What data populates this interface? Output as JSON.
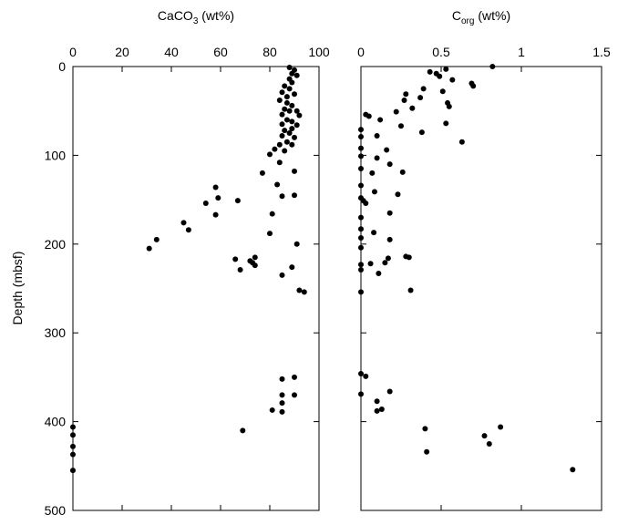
{
  "chart_data": [
    {
      "type": "scatter",
      "xlabel": [
        "CaCO",
        "3",
        " (wt%)"
      ],
      "ylabel": "Depth (mbsf)",
      "xlim": [
        0,
        100
      ],
      "xticks": [
        0,
        20,
        40,
        60,
        80,
        100
      ],
      "ylim": [
        0,
        500
      ],
      "yticks": [
        0,
        100,
        200,
        300,
        400,
        500
      ],
      "ytick_labels": true,
      "y_inverted": true,
      "color": "#000000",
      "x": [
        88,
        90,
        89,
        91,
        88,
        89,
        86,
        88,
        85,
        90,
        87,
        84,
        87,
        89,
        86,
        88,
        91,
        85,
        92,
        87,
        89,
        85,
        91,
        89,
        86,
        88,
        85,
        90,
        87,
        84,
        89,
        82,
        86,
        80,
        84,
        90,
        77,
        83,
        58,
        59,
        67,
        54,
        90,
        85,
        58,
        81,
        45,
        47,
        80,
        34,
        31,
        91,
        74,
        66,
        72,
        73,
        74,
        68,
        89,
        85,
        92,
        94,
        90,
        85,
        90,
        85,
        85,
        81,
        85,
        0,
        69,
        0,
        0,
        0,
        0
      ],
      "y": [
        1,
        4,
        8,
        10,
        14,
        18,
        22,
        25,
        29,
        31,
        34,
        38,
        41,
        44,
        48,
        50,
        50,
        54,
        55,
        60,
        62,
        65,
        66,
        70,
        72,
        75,
        78,
        80,
        85,
        88,
        88,
        93,
        95,
        99,
        108,
        118,
        120,
        133,
        136,
        148,
        151,
        154,
        145,
        146,
        167,
        166,
        176,
        184,
        188,
        195,
        205,
        200,
        215,
        217,
        219,
        221,
        224,
        229,
        226,
        235,
        252,
        254,
        350,
        352,
        370,
        370,
        379,
        387,
        389,
        406,
        410,
        415,
        428,
        437,
        455
      ]
    },
    {
      "type": "scatter",
      "xlabel": [
        "C",
        "org",
        " (wt%)"
      ],
      "xlim": [
        0,
        1.5
      ],
      "xticks": [
        0,
        0.5,
        1,
        1.5
      ],
      "ylim": [
        0,
        500
      ],
      "yticks": [
        0,
        100,
        200,
        300,
        400,
        500
      ],
      "ytick_labels": false,
      "y_inverted": true,
      "color": "#000000",
      "x": [
        0.82,
        0.43,
        0.47,
        0.49,
        0.53,
        0.57,
        0.69,
        0.7,
        0.39,
        0.51,
        0.28,
        0.37,
        0.27,
        0.54,
        0.55,
        0.32,
        0.22,
        0.03,
        0.05,
        0.12,
        0.25,
        0.53,
        0.38,
        0,
        0,
        0.1,
        0.63,
        0,
        0.16,
        0,
        0.1,
        0.18,
        0,
        0.07,
        0.26,
        0,
        0.085,
        0.23,
        0,
        0.015,
        0.03,
        0,
        0.18,
        0,
        0.08,
        0,
        0.18,
        0,
        0.28,
        0.17,
        0.15,
        0,
        0.06,
        0,
        0.11,
        0.3,
        0,
        0.31,
        0,
        0.03,
        0.18,
        0,
        0.1,
        0.13,
        0.1,
        0.4,
        0.87,
        0.77,
        0.8,
        0.41,
        1.32
      ],
      "y": [
        0,
        6,
        8,
        11,
        3,
        15,
        19,
        22,
        25,
        28,
        31,
        35,
        38,
        41,
        45,
        47,
        51,
        54,
        56,
        60,
        67,
        64,
        74,
        71,
        79,
        78,
        85,
        92,
        94,
        101,
        103,
        110,
        115,
        120,
        119,
        134,
        141,
        144,
        148,
        151,
        154,
        170,
        165,
        183,
        187,
        193,
        195,
        204,
        214,
        216,
        221,
        223,
        222,
        229,
        233,
        215,
        254,
        252,
        346,
        349,
        366,
        369,
        377,
        386,
        388,
        408,
        406,
        416,
        425,
        434,
        454
      ]
    }
  ]
}
